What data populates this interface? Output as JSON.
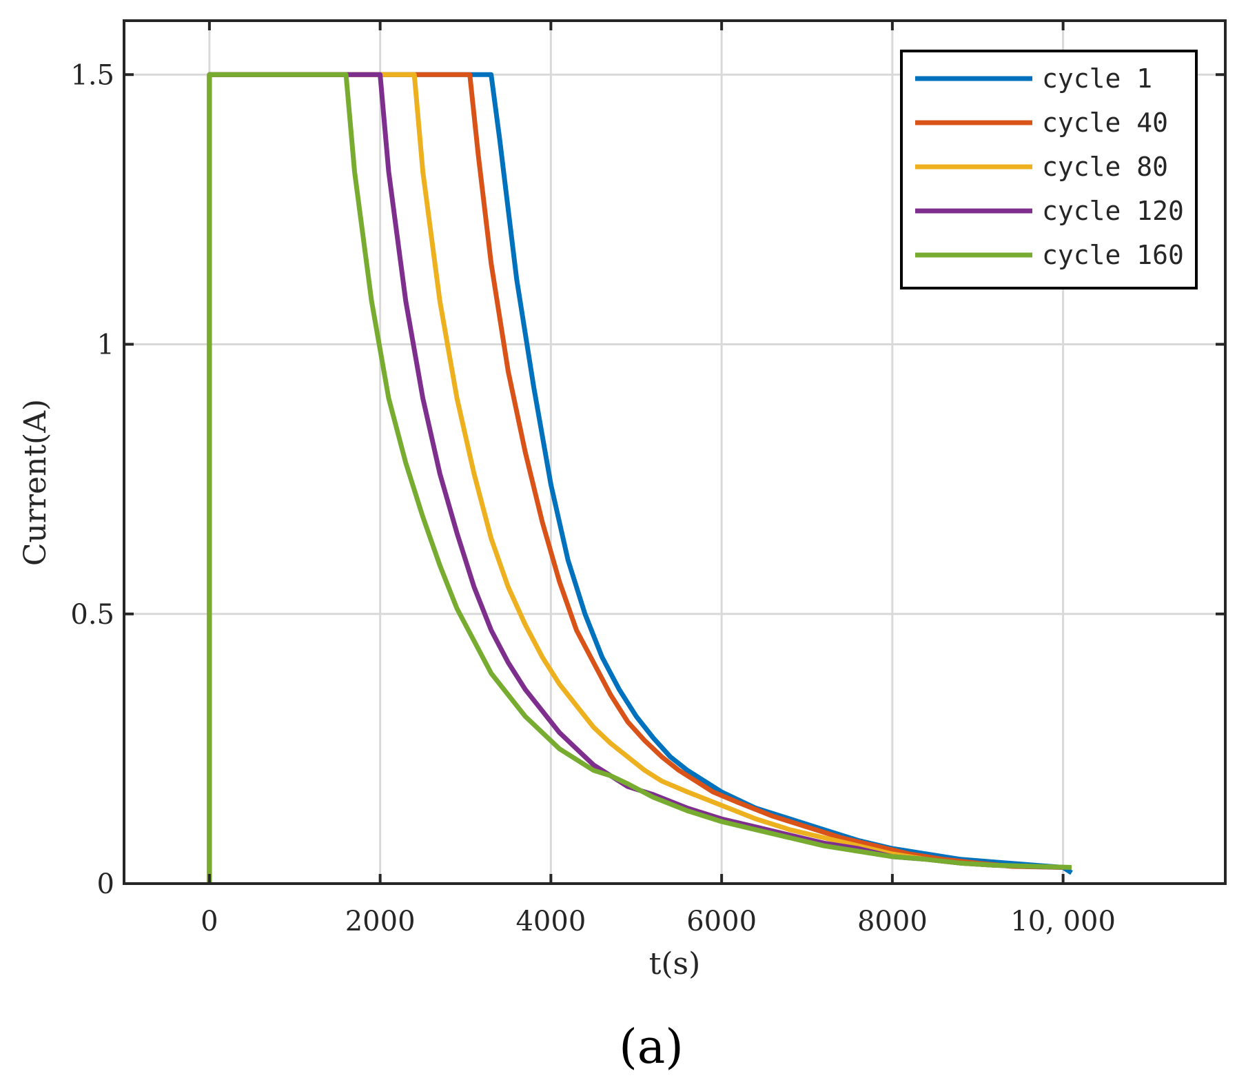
{
  "panel_label": "(a)",
  "chart_data": {
    "type": "line",
    "xlabel": "t(s)",
    "ylabel": "Current(A)",
    "xlim": [
      -1000,
      11900
    ],
    "ylim": [
      0,
      1.6
    ],
    "xticks": [
      0,
      2000,
      4000,
      6000,
      8000,
      10000
    ],
    "xtick_labels": [
      "0",
      "2000",
      "4000",
      "6000",
      "8000",
      "10, 000"
    ],
    "yticks": [
      0,
      0.5,
      1,
      1.5
    ],
    "ytick_labels": [
      "0",
      "0.5",
      "1",
      "1.5"
    ],
    "grid": true,
    "legend_position": "top-right",
    "series": [
      {
        "name": "cycle 1",
        "color": "#0072BD",
        "points": [
          [
            0,
            0
          ],
          [
            0,
            1.5
          ],
          [
            3300,
            1.5
          ],
          [
            3400,
            1.38
          ],
          [
            3600,
            1.12
          ],
          [
            3800,
            0.92
          ],
          [
            4000,
            0.74
          ],
          [
            4200,
            0.6
          ],
          [
            4400,
            0.5
          ],
          [
            4600,
            0.42
          ],
          [
            4800,
            0.36
          ],
          [
            5000,
            0.31
          ],
          [
            5200,
            0.27
          ],
          [
            5400,
            0.235
          ],
          [
            5600,
            0.21
          ],
          [
            5800,
            0.19
          ],
          [
            6000,
            0.17
          ],
          [
            6400,
            0.14
          ],
          [
            6800,
            0.12
          ],
          [
            7200,
            0.1
          ],
          [
            7600,
            0.08
          ],
          [
            8000,
            0.065
          ],
          [
            8400,
            0.055
          ],
          [
            8800,
            0.045
          ],
          [
            9200,
            0.04
          ],
          [
            9600,
            0.035
          ],
          [
            10000,
            0.03
          ],
          [
            10100,
            0.02
          ]
        ]
      },
      {
        "name": "cycle 40",
        "color": "#D95319",
        "points": [
          [
            0,
            0
          ],
          [
            0,
            1.5
          ],
          [
            3050,
            1.5
          ],
          [
            3150,
            1.35
          ],
          [
            3300,
            1.15
          ],
          [
            3500,
            0.95
          ],
          [
            3700,
            0.8
          ],
          [
            3900,
            0.67
          ],
          [
            4100,
            0.56
          ],
          [
            4300,
            0.47
          ],
          [
            4500,
            0.41
          ],
          [
            4700,
            0.35
          ],
          [
            4900,
            0.3
          ],
          [
            5100,
            0.265
          ],
          [
            5300,
            0.235
          ],
          [
            5500,
            0.21
          ],
          [
            5700,
            0.19
          ],
          [
            5900,
            0.17
          ],
          [
            6200,
            0.15
          ],
          [
            6600,
            0.125
          ],
          [
            7000,
            0.105
          ],
          [
            7400,
            0.085
          ],
          [
            7800,
            0.07
          ],
          [
            8200,
            0.055
          ],
          [
            8600,
            0.045
          ],
          [
            9000,
            0.038
          ],
          [
            9400,
            0.032
          ],
          [
            10000,
            0.03
          ]
        ]
      },
      {
        "name": "cycle 80",
        "color": "#EDB120",
        "points": [
          [
            0,
            0
          ],
          [
            0,
            1.5
          ],
          [
            2400,
            1.5
          ],
          [
            2500,
            1.32
          ],
          [
            2700,
            1.08
          ],
          [
            2900,
            0.9
          ],
          [
            3100,
            0.76
          ],
          [
            3300,
            0.64
          ],
          [
            3500,
            0.55
          ],
          [
            3700,
            0.48
          ],
          [
            3900,
            0.42
          ],
          [
            4100,
            0.37
          ],
          [
            4300,
            0.33
          ],
          [
            4500,
            0.29
          ],
          [
            4700,
            0.26
          ],
          [
            4900,
            0.235
          ],
          [
            5100,
            0.21
          ],
          [
            5300,
            0.19
          ],
          [
            5600,
            0.17
          ],
          [
            6000,
            0.145
          ],
          [
            6400,
            0.12
          ],
          [
            6800,
            0.1
          ],
          [
            7200,
            0.085
          ],
          [
            7600,
            0.07
          ],
          [
            8000,
            0.055
          ],
          [
            8400,
            0.045
          ],
          [
            8800,
            0.038
          ],
          [
            9200,
            0.034
          ],
          [
            10000,
            0.03
          ]
        ]
      },
      {
        "name": "cycle 120",
        "color": "#7E2F8E",
        "points": [
          [
            0,
            0
          ],
          [
            0,
            1.5
          ],
          [
            2000,
            1.5
          ],
          [
            2100,
            1.32
          ],
          [
            2300,
            1.08
          ],
          [
            2500,
            0.9
          ],
          [
            2700,
            0.76
          ],
          [
            2900,
            0.65
          ],
          [
            3100,
            0.55
          ],
          [
            3300,
            0.47
          ],
          [
            3500,
            0.41
          ],
          [
            3700,
            0.36
          ],
          [
            3900,
            0.32
          ],
          [
            4100,
            0.28
          ],
          [
            4300,
            0.25
          ],
          [
            4500,
            0.22
          ],
          [
            4700,
            0.2
          ],
          [
            4900,
            0.18
          ],
          [
            5200,
            0.165
          ],
          [
            5600,
            0.14
          ],
          [
            6000,
            0.12
          ],
          [
            6400,
            0.105
          ],
          [
            6800,
            0.09
          ],
          [
            7200,
            0.075
          ],
          [
            7600,
            0.065
          ],
          [
            8000,
            0.05
          ],
          [
            8400,
            0.045
          ],
          [
            8800,
            0.038
          ],
          [
            9200,
            0.034
          ],
          [
            10000,
            0.03
          ]
        ]
      },
      {
        "name": "cycle 160",
        "color": "#77AC30",
        "points": [
          [
            0,
            0
          ],
          [
            0,
            1.5
          ],
          [
            1600,
            1.5
          ],
          [
            1700,
            1.32
          ],
          [
            1900,
            1.08
          ],
          [
            2100,
            0.9
          ],
          [
            2300,
            0.78
          ],
          [
            2500,
            0.68
          ],
          [
            2700,
            0.59
          ],
          [
            2900,
            0.51
          ],
          [
            3100,
            0.45
          ],
          [
            3300,
            0.39
          ],
          [
            3500,
            0.35
          ],
          [
            3700,
            0.31
          ],
          [
            3900,
            0.28
          ],
          [
            4100,
            0.25
          ],
          [
            4300,
            0.23
          ],
          [
            4500,
            0.21
          ],
          [
            4700,
            0.2
          ],
          [
            4900,
            0.185
          ],
          [
            5200,
            0.16
          ],
          [
            5600,
            0.135
          ],
          [
            6000,
            0.115
          ],
          [
            6400,
            0.1
          ],
          [
            6800,
            0.085
          ],
          [
            7200,
            0.07
          ],
          [
            7600,
            0.06
          ],
          [
            8000,
            0.05
          ],
          [
            8400,
            0.045
          ],
          [
            8800,
            0.038
          ],
          [
            9200,
            0.034
          ],
          [
            10100,
            0.03
          ]
        ]
      }
    ]
  }
}
